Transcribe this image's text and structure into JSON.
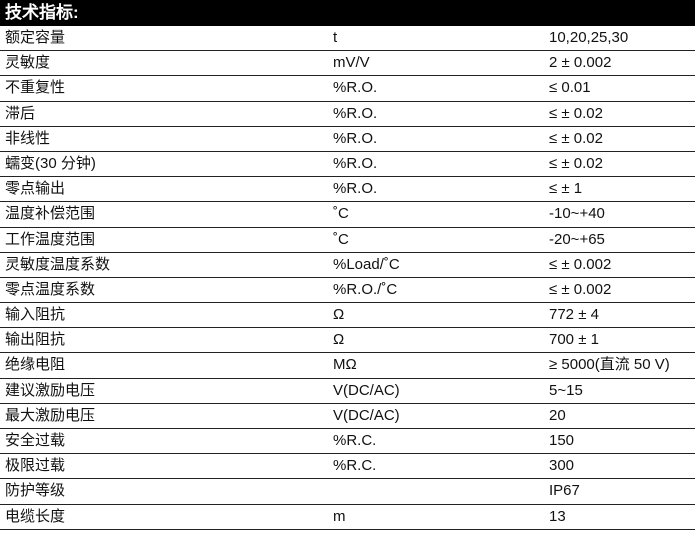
{
  "title": "技术指标:",
  "rows": [
    {
      "name": "额定容量",
      "unit": "t",
      "value": "10,20,25,30"
    },
    {
      "name": "灵敏度",
      "unit": "mV/V",
      "value": "2 ± 0.002"
    },
    {
      "name": "不重复性",
      "unit": "%R.O.",
      "value": "≤ 0.01"
    },
    {
      "name": "滞后",
      "unit": "%R.O.",
      "value": "≤ ± 0.02"
    },
    {
      "name": "非线性",
      "unit": "%R.O.",
      "value": "≤ ± 0.02"
    },
    {
      "name": "蠕变(30 分钟)",
      "unit": "%R.O.",
      "value": "≤ ± 0.02"
    },
    {
      "name": "零点输出",
      "unit": "%R.O.",
      "value": "≤ ± 1"
    },
    {
      "name": "温度补偿范围",
      "unit": "˚C",
      "value": "-10~+40"
    },
    {
      "name": "工作温度范围",
      "unit": "˚C",
      "value": "-20~+65"
    },
    {
      "name": "灵敏度温度系数",
      "unit": "%Load/˚C",
      "value": "≤ ± 0.002"
    },
    {
      "name": "零点温度系数",
      "unit": "%R.O./˚C",
      "value": "≤ ± 0.002"
    },
    {
      "name": "输入阻抗",
      "unit": "Ω",
      "value": "772 ± 4"
    },
    {
      "name": "输出阻抗",
      "unit": "Ω",
      "value": "700 ± 1"
    },
    {
      "name": "绝缘电阻",
      "unit": "MΩ",
      "value": "≥ 5000(直流 50 V)"
    },
    {
      "name": "建议激励电压",
      "unit": "V(DC/AC)",
      "value": "5~15"
    },
    {
      "name": "最大激励电压",
      "unit": "V(DC/AC)",
      "value": "20"
    },
    {
      "name": "安全过载",
      "unit": "%R.C.",
      "value": "150"
    },
    {
      "name": "极限过载",
      "unit": "%R.C.",
      "value": "300"
    },
    {
      "name": "防护等级",
      "unit": "",
      "value": "IP67"
    },
    {
      "name": "电缆长度",
      "unit": "m",
      "value": "13"
    }
  ]
}
